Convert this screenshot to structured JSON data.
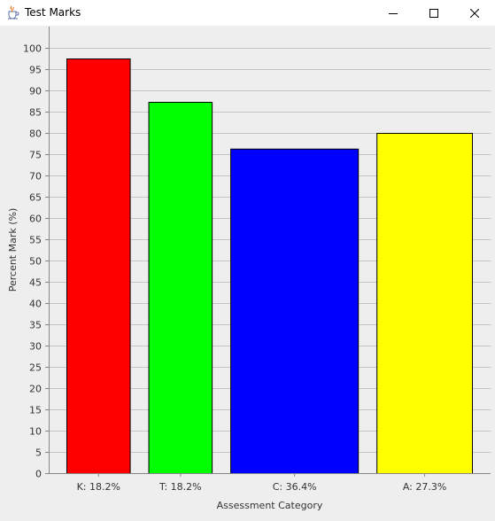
{
  "window": {
    "title": "Test Marks",
    "icon": "java-cup-icon",
    "controls": [
      "minimize",
      "maximize",
      "close"
    ]
  },
  "chart_data": {
    "type": "bar",
    "categories": [
      "K: 18.2%",
      "T: 18.2%",
      "C: 36.4%",
      "A: 27.3%"
    ],
    "values": [
      97.5,
      87.3,
      76.3,
      80.0
    ],
    "category_weights": [
      18.2,
      18.2,
      36.4,
      27.3
    ],
    "colors": [
      "#ff0000",
      "#00ff00",
      "#0000ff",
      "#ffff00"
    ],
    "title": "",
    "xlabel": "Assessment Category",
    "ylabel": "Percent Mark (%)",
    "ylim": [
      0,
      105
    ],
    "yticks": [
      0,
      5,
      10,
      15,
      20,
      25,
      30,
      35,
      40,
      45,
      50,
      55,
      60,
      65,
      70,
      75,
      80,
      85,
      90,
      95,
      100
    ],
    "grid": true,
    "legend": "none"
  }
}
